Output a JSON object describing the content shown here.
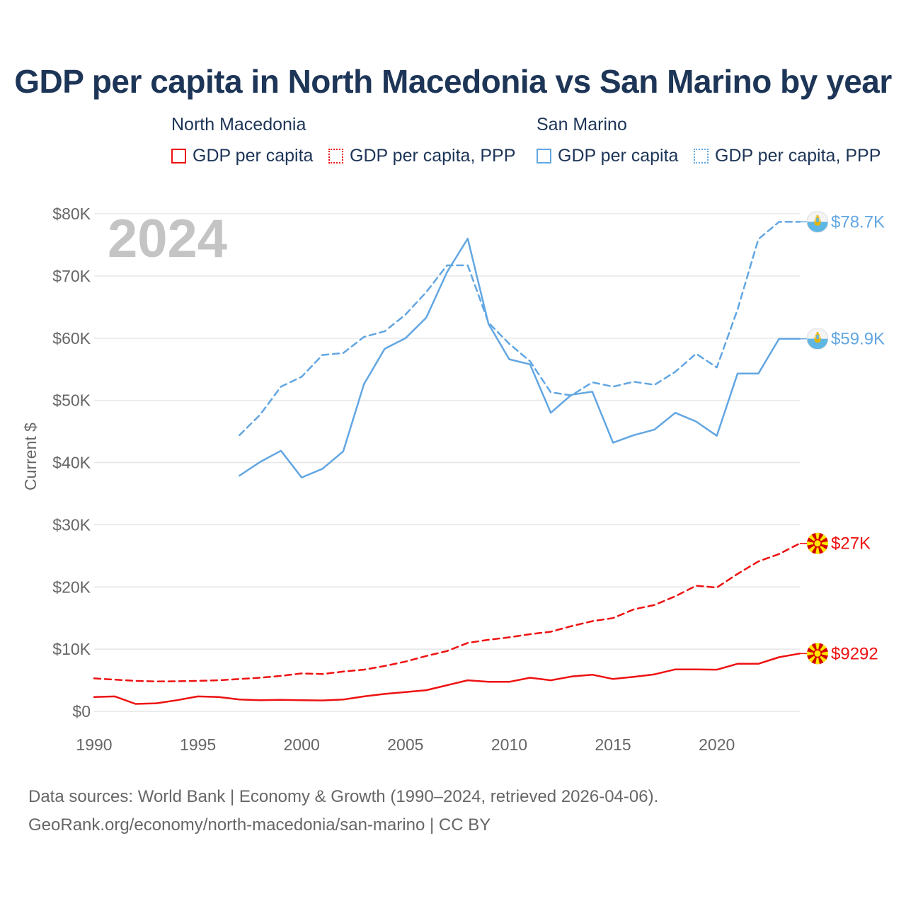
{
  "chart_data": {
    "type": "line",
    "title": "GDP per capita in North Macedonia vs San Marino by year",
    "ylabel": "Current $",
    "xlabel": "",
    "xlim": [
      1990,
      2024
    ],
    "ylim": [
      0,
      80000
    ],
    "x_ticks": [
      "1990",
      "1995",
      "2000",
      "2005",
      "2010",
      "2015",
      "2020"
    ],
    "x_tick_values": [
      1990,
      1995,
      2000,
      2005,
      2010,
      2015,
      2020
    ],
    "y_ticks": [
      "$0",
      "$10K",
      "$20K",
      "$30K",
      "$40K",
      "$50K",
      "$60K",
      "$70K",
      "$80K"
    ],
    "y_tick_values": [
      0,
      10000,
      20000,
      30000,
      40000,
      50000,
      60000,
      70000,
      80000
    ],
    "year_label": "2024",
    "grid": true,
    "legend": {
      "groups": [
        {
          "country": "North Macedonia",
          "items": [
            "GDP per capita",
            "GDP per capita, PPP"
          ]
        },
        {
          "country": "San Marino",
          "items": [
            "GDP per capita",
            "GDP per capita, PPP"
          ]
        }
      ]
    },
    "series": [
      {
        "name": "North Macedonia GDP per capita",
        "country": "North Macedonia",
        "style": "solid",
        "color": "#ee1111",
        "end_label": "$9292",
        "x": [
          1990,
          1991,
          1992,
          1993,
          1994,
          1995,
          1996,
          1997,
          1998,
          1999,
          2000,
          2001,
          2002,
          2003,
          2004,
          2005,
          2006,
          2007,
          2008,
          2009,
          2010,
          2011,
          2012,
          2013,
          2014,
          2015,
          2016,
          2017,
          2018,
          2019,
          2020,
          2021,
          2022,
          2023,
          2024
        ],
        "values": [
          2300,
          2400,
          1200,
          1300,
          1800,
          2400,
          2300,
          1900,
          1800,
          1850,
          1800,
          1750,
          1900,
          2400,
          2800,
          3100,
          3400,
          4200,
          5000,
          4750,
          4750,
          5400,
          5000,
          5600,
          5900,
          5200,
          5550,
          5950,
          6750,
          6750,
          6700,
          7650,
          7650,
          8700,
          9292
        ]
      },
      {
        "name": "North Macedonia GDP per capita, PPP",
        "country": "North Macedonia",
        "style": "dashed",
        "color": "#ee1111",
        "end_label": "$27K",
        "x": [
          1990,
          1991,
          1992,
          1993,
          1994,
          1995,
          1996,
          1997,
          1998,
          1999,
          2000,
          2001,
          2002,
          2003,
          2004,
          2005,
          2006,
          2007,
          2008,
          2009,
          2010,
          2011,
          2012,
          2013,
          2014,
          2015,
          2016,
          2017,
          2018,
          2019,
          2020,
          2021,
          2022,
          2023,
          2024
        ],
        "values": [
          5300,
          5100,
          4900,
          4800,
          4850,
          4900,
          5000,
          5200,
          5400,
          5700,
          6100,
          6000,
          6400,
          6700,
          7300,
          8000,
          8900,
          9700,
          11000,
          11500,
          11900,
          12400,
          12800,
          13700,
          14500,
          15000,
          16400,
          17100,
          18500,
          20200,
          19900,
          22100,
          24100,
          25300,
          27000
        ]
      },
      {
        "name": "San Marino GDP per capita",
        "country": "San Marino",
        "style": "solid",
        "color": "#62a6e2",
        "end_label": "$59.9K",
        "x": [
          1997,
          1998,
          1999,
          2000,
          2001,
          2002,
          2003,
          2004,
          2005,
          2006,
          2007,
          2008,
          2009,
          2010,
          2011,
          2012,
          2013,
          2014,
          2015,
          2016,
          2017,
          2018,
          2019,
          2020,
          2021,
          2022,
          2023,
          2024
        ],
        "values": [
          37900,
          40100,
          41900,
          37600,
          39000,
          41800,
          52600,
          58300,
          60000,
          63300,
          70600,
          76000,
          62300,
          56600,
          55800,
          48000,
          50900,
          51400,
          43200,
          44400,
          45300,
          48000,
          46600,
          44300,
          54300,
          54300,
          59900,
          59900
        ]
      },
      {
        "name": "San Marino GDP per capita, PPP",
        "country": "San Marino",
        "style": "dashed",
        "color": "#62a6e2",
        "end_label": "$78.7K",
        "x": [
          1997,
          1998,
          1999,
          2000,
          2001,
          2002,
          2003,
          2004,
          2005,
          2006,
          2007,
          2008,
          2009,
          2010,
          2011,
          2012,
          2013,
          2014,
          2015,
          2016,
          2017,
          2018,
          2019,
          2020,
          2021,
          2022,
          2023,
          2024
        ],
        "values": [
          44400,
          47700,
          52200,
          53800,
          57300,
          57600,
          60200,
          61100,
          63800,
          67400,
          71700,
          71700,
          62500,
          59100,
          56300,
          51300,
          50800,
          52900,
          52200,
          53000,
          52500,
          54600,
          57500,
          55300,
          64600,
          75900,
          78700,
          78700
        ]
      }
    ]
  },
  "footer": {
    "line1": "Data sources: World Bank | Economy & Growth (1990–2024, retrieved 2026-04-06).",
    "line2": "GeoRank.org/economy/north-macedonia/san-marino | CC BY"
  },
  "colors": {
    "north_macedonia": "#ee1111",
    "san_marino": "#62a6e2",
    "title": "#1d3557",
    "axis_text": "#666666",
    "grid": "#e6e6e6"
  },
  "icons": {
    "north_macedonia": "north-macedonia-flag-icon",
    "san_marino": "san-marino-flag-icon"
  }
}
